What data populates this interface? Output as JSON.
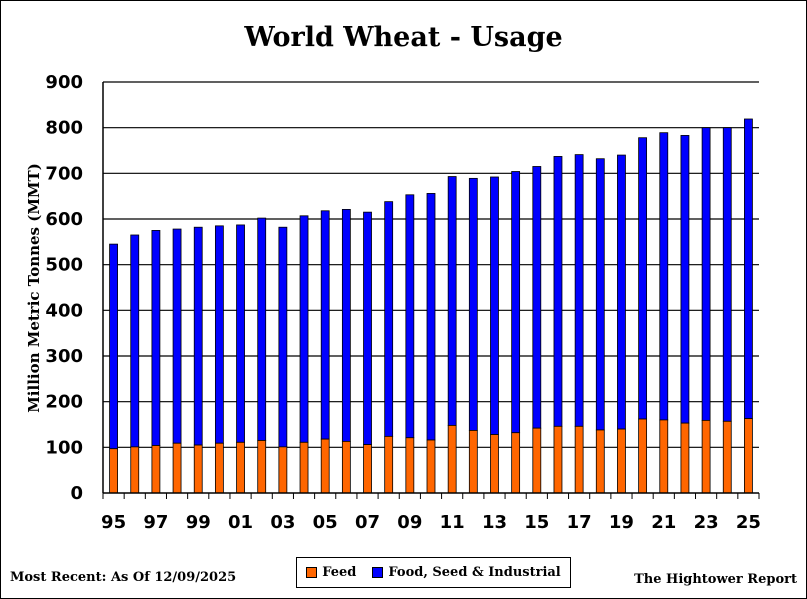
{
  "chart_data": {
    "type": "bar",
    "stacked": true,
    "title": "World Wheat - Usage",
    "xlabel": "",
    "ylabel": "Million Metric Tonnes (MMT)",
    "ylim": [
      0,
      900
    ],
    "yticks": [
      0,
      100,
      200,
      300,
      400,
      500,
      600,
      700,
      800,
      900
    ],
    "grid": "horizontal",
    "legend_position": "bottom",
    "categories": [
      "95",
      "96",
      "97",
      "98",
      "99",
      "00",
      "01",
      "02",
      "03",
      "04",
      "05",
      "06",
      "07",
      "08",
      "09",
      "10",
      "11",
      "12",
      "13",
      "14",
      "15",
      "16",
      "17",
      "18",
      "19",
      "20",
      "21",
      "22",
      "23",
      "24",
      "25"
    ],
    "tick_labels": [
      "95",
      "97",
      "99",
      "01",
      "03",
      "05",
      "07",
      "09",
      "11",
      "13",
      "15",
      "17",
      "19",
      "21",
      "23",
      "25"
    ],
    "series": [
      {
        "name": "Feed",
        "color": "#ff6600",
        "values": [
          97,
          101,
          104,
          109,
          105,
          109,
          111,
          115,
          101,
          111,
          118,
          113,
          106,
          124,
          121,
          116,
          148,
          137,
          128,
          132,
          142,
          146,
          146,
          138,
          140,
          162,
          160,
          153,
          159,
          157,
          163
        ]
      },
      {
        "name": "Food, Seed & Industrial",
        "color": "#0000ff",
        "values": [
          448,
          464,
          471,
          469,
          477,
          476,
          476,
          487,
          481,
          496,
          500,
          508,
          509,
          514,
          532,
          540,
          545,
          552,
          564,
          572,
          573,
          591,
          595,
          594,
          600,
          616,
          629,
          630,
          641,
          643,
          656
        ]
      }
    ]
  },
  "footer": {
    "left": "Most Recent: As Of 12/09/2025",
    "right": "The Hightower Report"
  }
}
